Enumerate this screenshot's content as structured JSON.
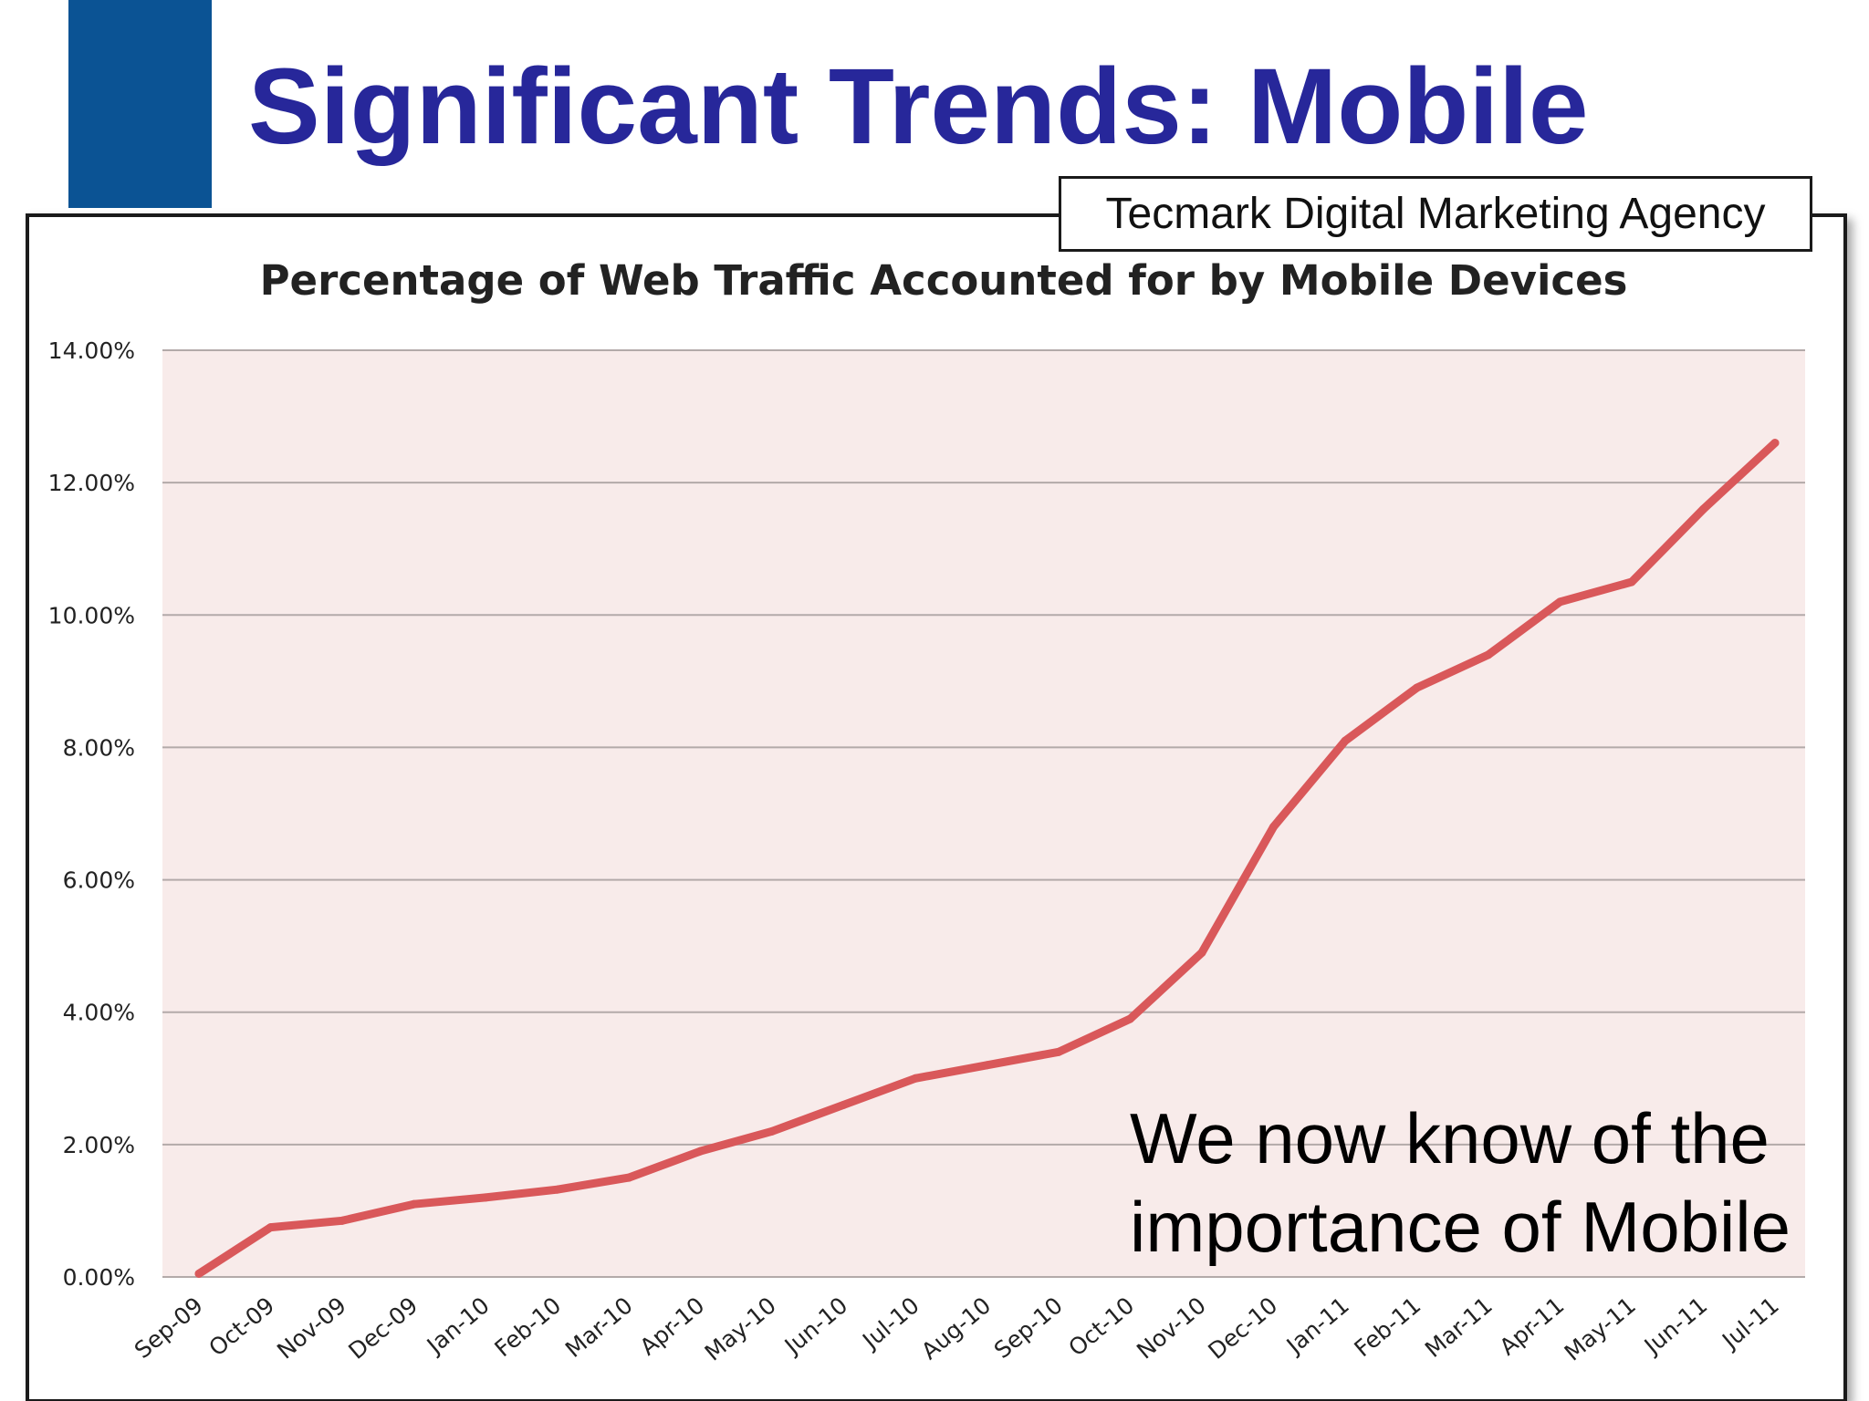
{
  "slide": {
    "title": "Significant Trends: Mobile",
    "source_label": "Tecmark Digital Marketing Agency",
    "callout_lines": [
      "We now know of the",
      "importance of Mobile"
    ],
    "accent_color": "#0b5394",
    "title_color": "#27279a"
  },
  "chart_data": {
    "type": "line",
    "title": "Percentage of Web Traffic Accounted for by Mobile Devices",
    "xlabel": "",
    "ylabel": "",
    "ylim": [
      0,
      14
    ],
    "yticks": [
      "0.00%",
      "2.00%",
      "4.00%",
      "6.00%",
      "8.00%",
      "10.00%",
      "12.00%",
      "14.00%"
    ],
    "ytick_values": [
      0,
      2,
      4,
      6,
      8,
      10,
      12,
      14
    ],
    "categories": [
      "Sep-09",
      "Oct-09",
      "Nov-09",
      "Dec-09",
      "Jan-10",
      "Feb-10",
      "Mar-10",
      "Apr-10",
      "May-10",
      "Jun-10",
      "Jul-10",
      "Aug-10",
      "Sep-10",
      "Oct-10",
      "Nov-10",
      "Dec-10",
      "Jan-11",
      "Feb-11",
      "Mar-11",
      "Apr-11",
      "May-11",
      "Jun-11",
      "Jul-11"
    ],
    "series": [
      {
        "values": [
          0.05,
          0.75,
          0.85,
          1.1,
          1.2,
          1.32,
          1.5,
          1.9,
          2.2,
          2.6,
          3.0,
          3.2,
          3.4,
          3.9,
          4.9,
          6.8,
          8.1,
          8.9,
          9.4,
          10.2,
          10.5,
          11.6,
          12.6
        ],
        "color": "#d9585a"
      }
    ],
    "grid": true,
    "legend": "none",
    "plot_background": "#f8ebea",
    "gridline_color": "#b3aaa9"
  }
}
